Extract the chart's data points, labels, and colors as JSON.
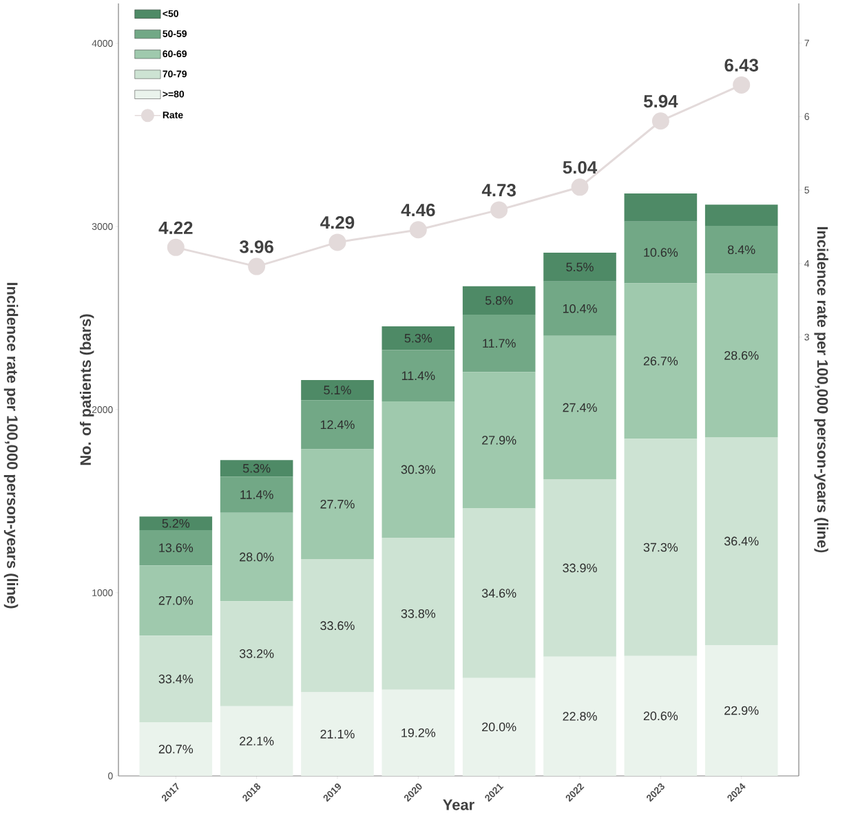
{
  "chart_data": {
    "type": "bar",
    "stacked": true,
    "legend": "top left",
    "xlabel": "Year",
    "ylabel": "No. of patients (bars)",
    "y2label": "Incidence rate per 100,000 person-years (line)",
    "annotations": [
      "Incidence rate per 100,000 person-years (line)",
      "20.7%",
      "33.4%",
      "27.0%",
      "13.6%",
      "5.2%",
      "22.1%",
      "33.2%",
      "28.0%",
      "11.4%",
      "5.3%",
      "21.1%",
      "33.6%",
      "27.7%",
      "12.4%",
      "5.1%",
      "19.2%",
      "33.8%",
      "30.3%",
      "11.4%",
      "5.3%",
      "20.0%",
      "34.6%",
      "27.9%",
      "11.7%",
      "5.8%",
      "22.8%",
      "33.9%",
      "27.4%",
      "10.4%",
      "5.5%",
      "20.6%",
      "37.3%",
      "26.7%",
      "10.6%",
      "22.9%",
      "36.4%",
      "28.6%",
      "8.4%"
    ],
    "categories": [
      "2017",
      "2018",
      "2019",
      "2020",
      "2021",
      "2022",
      "2023",
      "2024"
    ],
    "ylim": [
      0,
      4218
    ],
    "yticks": [
      0,
      1000,
      2000,
      3000,
      4000
    ],
    "y2lim": [
      -2.97,
      7.54
    ],
    "y2ticks": [
      3,
      4,
      5,
      6,
      7
    ],
    "series": [
      {
        "name": ">=80",
        "color": "#eaf3ec",
        "values": [
          293,
          381,
          457,
          471,
          535,
          651,
          655,
          714
        ]
      },
      {
        "name": "70-79",
        "color": "#cde3d3",
        "values": [
          473,
          573,
          727,
          830,
          925,
          969,
          1186,
          1136
        ]
      },
      {
        "name": "60-69",
        "color": "#9fc9ad",
        "values": [
          383,
          483,
          600,
          744,
          746,
          783,
          849,
          892
        ]
      },
      {
        "name": "50-59",
        "color": "#72a886",
        "values": [
          193,
          197,
          268,
          280,
          313,
          297,
          337,
          262
        ]
      },
      {
        "name": "<50",
        "color": "#4e8a66",
        "values": [
          74,
          91,
          110,
          130,
          155,
          157,
          153,
          115
        ]
      },
      {
        "name": "Rate",
        "type": "line",
        "axis": "y2",
        "marker": "circle",
        "color": "#e3dada",
        "values": [
          4.22,
          3.96,
          4.29,
          4.46,
          4.73,
          5.04,
          5.94,
          6.43
        ],
        "value_labels": [
          "4.22",
          "3.96",
          "4.29",
          "4.46",
          "4.73",
          "5.04",
          "5.94",
          "6.43"
        ]
      }
    ]
  }
}
